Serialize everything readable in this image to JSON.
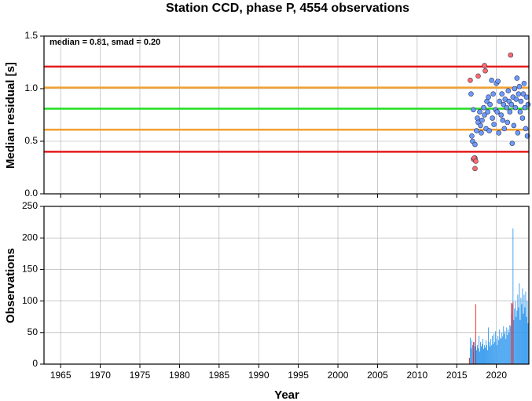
{
  "chart_data": [
    {
      "type": "scatter",
      "title": "Station CCD, phase P, 4554 observations",
      "ylabel": "Median residual [s]",
      "annotation": "median = 0.81, smad = 0.20",
      "xlim": [
        1962.9,
        2024.1
      ],
      "ylim": [
        0,
        1.5
      ],
      "xticks": [
        1965,
        1970,
        1975,
        1980,
        1985,
        1990,
        1995,
        2000,
        2005,
        2010,
        2015,
        2020
      ],
      "yticks": [
        {
          "value": 0,
          "label": "0.0"
        },
        0.5,
        {
          "value": 1,
          "label": "1.0"
        },
        1.5
      ],
      "grid": true,
      "hlines": [
        {
          "value": 1.21,
          "color": "#e41a1c"
        },
        {
          "value": 1.01,
          "color": "#f0a030"
        },
        {
          "value": 0.81,
          "color": "#22dd22"
        },
        {
          "value": 0.61,
          "color": "#f0a030"
        },
        {
          "value": 0.4,
          "color": "#e41a1c"
        }
      ],
      "series": [
        {
          "color": "#ff6b6b",
          "x": [
            2016.7,
            2017.7,
            2018.5,
            2018.6,
            2021.8,
            2017.1,
            2017.3,
            2017.2,
            2017.4,
            2017.3
          ],
          "values": [
            1.08,
            1.12,
            1.22,
            1.17,
            1.32,
            0.33,
            0.34,
            0.34,
            0.31,
            0.24
          ]
        },
        {
          "color": "#6b9bff",
          "x": [
            2016.8,
            2016.9,
            2017.0,
            2017.1,
            2017.3,
            2017.5,
            2017.6,
            2017.7,
            2017.9,
            2018.0,
            2018.1,
            2018.2,
            2018.4,
            2018.5,
            2018.7,
            2018.8,
            2018.9,
            2019.0,
            2019.1,
            2019.2,
            2019.4,
            2019.5,
            2019.6,
            2019.7,
            2019.9,
            2020.0,
            2020.1,
            2020.2,
            2020.3,
            2020.4,
            2020.6,
            2020.7,
            2020.8,
            2020.9,
            2021.0,
            2021.1,
            2021.3,
            2021.4,
            2021.5,
            2021.6,
            2021.7,
            2021.9,
            2022.0,
            2022.1,
            2022.2,
            2022.3,
            2022.4,
            2022.5,
            2022.6,
            2022.7,
            2022.8,
            2022.9,
            2023.0,
            2023.1,
            2023.3,
            2023.4,
            2023.5,
            2023.6,
            2023.7,
            2023.8,
            2023.9,
            2024.0
          ],
          "values": [
            0.95,
            0.55,
            0.5,
            0.8,
            0.47,
            0.6,
            0.72,
            0.68,
            0.78,
            0.65,
            0.58,
            0.7,
            0.82,
            0.75,
            0.62,
            0.88,
            0.78,
            0.92,
            0.6,
            0.85,
            1.08,
            0.72,
            0.95,
            0.66,
            0.8,
            1.05,
            0.78,
            1.07,
            0.58,
            0.88,
            0.75,
            0.95,
            0.7,
            0.85,
            0.62,
            0.9,
            0.82,
            0.68,
            0.98,
            0.88,
            0.78,
            0.85,
            0.48,
            0.92,
            0.65,
            1.0,
            0.82,
            0.9,
            1.1,
            0.58,
            0.95,
            1.02,
            0.78,
            0.88,
            0.72,
            0.95,
            1.05,
            0.82,
            0.62,
            0.92,
            0.55,
            0.85
          ]
        }
      ]
    },
    {
      "type": "bar",
      "ylabel": "Observations",
      "xlabel": "Year",
      "xlim": [
        1962.9,
        2024.1
      ],
      "ylim": [
        0,
        250
      ],
      "xticks": [
        1965,
        1970,
        1975,
        1980,
        1985,
        1990,
        1995,
        2000,
        2005,
        2010,
        2015,
        2020
      ],
      "yticks": [
        0,
        50,
        100,
        150,
        200,
        250
      ],
      "grid": true,
      "series": [
        {
          "color": "#3399ee",
          "x": [
            2016.6,
            2016.7,
            2016.8,
            2016.9,
            2017.0,
            2017.1,
            2017.2,
            2017.3,
            2017.4,
            2017.5,
            2017.6,
            2017.7,
            2017.8,
            2017.9,
            2018.0,
            2018.1,
            2018.2,
            2018.3,
            2018.4,
            2018.5,
            2018.6,
            2018.7,
            2018.8,
            2018.9,
            2019.0,
            2019.1,
            2019.2,
            2019.3,
            2019.4,
            2019.5,
            2019.6,
            2019.7,
            2019.8,
            2019.9,
            2020.0,
            2020.1,
            2020.2,
            2020.3,
            2020.4,
            2020.5,
            2020.6,
            2020.7,
            2020.8,
            2020.9,
            2021.0,
            2021.1,
            2021.2,
            2021.3,
            2021.4,
            2021.5,
            2021.6,
            2021.7,
            2021.8,
            2021.9,
            2022.0,
            2022.1,
            2022.2,
            2022.3,
            2022.4,
            2022.5,
            2022.6,
            2022.7,
            2022.8,
            2022.9,
            2023.0,
            2023.1,
            2023.2,
            2023.3,
            2023.4,
            2023.5,
            2023.6,
            2023.7,
            2023.8,
            2023.9,
            2024.0
          ],
          "values": [
            10,
            42,
            25,
            38,
            30,
            20,
            35,
            28,
            40,
            22,
            30,
            25,
            45,
            20,
            35,
            28,
            32,
            40,
            24,
            30,
            26,
            38,
            30,
            22,
            58,
            35,
            28,
            40,
            30,
            45,
            32,
            48,
            35,
            52,
            40,
            30,
            45,
            38,
            55,
            42,
            40,
            50,
            44,
            60,
            48,
            52,
            40,
            58,
            46,
            55,
            50,
            62,
            60,
            80,
            95,
            215,
            70,
            88,
            100,
            75,
            85,
            110,
            90,
            128,
            70,
            105,
            95,
            120,
            80,
            110,
            90,
            115,
            75,
            100,
            65
          ]
        },
        {
          "color": "#ee2222",
          "x": [
            2016.6,
            2017.1,
            2017.4,
            2021.9,
            2022.1
          ],
          "values": [
            10,
            35,
            95,
            97,
            98
          ]
        }
      ]
    }
  ]
}
